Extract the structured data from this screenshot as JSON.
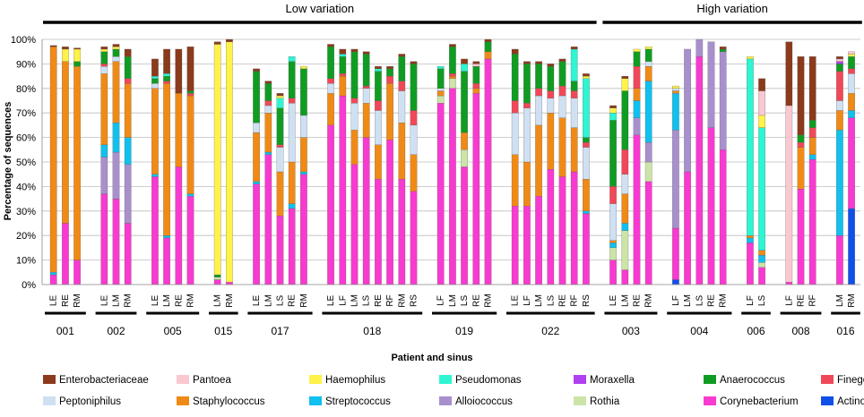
{
  "chart_data": {
    "type": "bar",
    "stacked": true,
    "title": "",
    "xlabel": "Patient and sinus",
    "ylabel": "Percentage of sequences",
    "ylim": [
      0,
      100
    ],
    "yticks": [
      0,
      10,
      20,
      30,
      40,
      50,
      60,
      70,
      80,
      90,
      100
    ],
    "ytick_labels": [
      "0%",
      "10%",
      "20%",
      "30%",
      "40%",
      "50%",
      "60%",
      "70%",
      "80%",
      "90%",
      "100%"
    ],
    "grid": true,
    "legend_position": "bottom",
    "variation_groups": [
      {
        "label": "Low variation",
        "patients": [
          "001",
          "002",
          "005",
          "015",
          "017",
          "018",
          "019",
          "022"
        ]
      },
      {
        "label": "High variation",
        "patients": [
          "003",
          "004",
          "006",
          "008",
          "016"
        ]
      }
    ],
    "taxa": [
      {
        "name": "Enterobacteriaceae",
        "color": "#8b3a1c"
      },
      {
        "name": "Pantoea",
        "color": "#f9c8d0"
      },
      {
        "name": "Haemophilus",
        "color": "#fff24a"
      },
      {
        "name": "Pseudomonas",
        "color": "#2ef5d2"
      },
      {
        "name": "Moraxella",
        "color": "#b040f0"
      },
      {
        "name": "Anaerococcus",
        "color": "#109c22"
      },
      {
        "name": "Finegoldia",
        "color": "#f04858"
      },
      {
        "name": "Peptoniphilus",
        "color": "#cfe0f2"
      },
      {
        "name": "Staphylococcus",
        "color": "#f08a16"
      },
      {
        "name": "Streptococcus",
        "color": "#10c0ee"
      },
      {
        "name": "Alloiococcus",
        "color": "#a890cc"
      },
      {
        "name": "Rothia",
        "color": "#cce4a8"
      },
      {
        "name": "Corynebacterium",
        "color": "#f83ad0"
      },
      {
        "name": "Actinomyces",
        "color": "#1050e8"
      }
    ],
    "stack_order": [
      "Actinomyces",
      "Corynebacterium",
      "Rothia",
      "Alloiococcus",
      "Streptococcus",
      "Staphylococcus",
      "Peptoniphilus",
      "Finegoldia",
      "Anaerococcus",
      "Moraxella",
      "Pseudomonas",
      "Haemophilus",
      "Pantoea",
      "Enterobacteriaceae"
    ],
    "patients": [
      {
        "id": "001",
        "samples": [
          {
            "sinus": "LE",
            "values": {
              "Corynebacterium": 4,
              "Streptococcus": 1,
              "Staphylococcus": 92,
              "Enterobacteriaceae": 0.5
            }
          },
          {
            "sinus": "RE",
            "values": {
              "Corynebacterium": 25,
              "Staphylococcus": 66,
              "Haemophilus": 5,
              "Enterobacteriaceae": 1
            }
          },
          {
            "sinus": "RM",
            "values": {
              "Corynebacterium": 10,
              "Staphylococcus": 79,
              "Anaerococcus": 2,
              "Haemophilus": 5,
              "Enterobacteriaceae": 0.5
            }
          }
        ]
      },
      {
        "id": "002",
        "samples": [
          {
            "sinus": "LE",
            "values": {
              "Corynebacterium": 37,
              "Alloiococcus": 15,
              "Streptococcus": 5,
              "Staphylococcus": 29,
              "Peptoniphilus": 3,
              "Finegoldia": 1,
              "Anaerococcus": 5,
              "Haemophilus": 1,
              "Enterobacteriaceae": 1
            }
          },
          {
            "sinus": "LM",
            "values": {
              "Corynebacterium": 35,
              "Alloiococcus": 19,
              "Streptococcus": 12,
              "Staphylococcus": 25,
              "Peptoniphilus": 2,
              "Anaerococcus": 3,
              "Haemophilus": 1,
              "Enterobacteriaceae": 1
            }
          },
          {
            "sinus": "RM",
            "values": {
              "Corynebacterium": 25,
              "Alloiococcus": 24,
              "Streptococcus": 11,
              "Staphylococcus": 22,
              "Finegoldia": 2,
              "Anaerococcus": 9,
              "Enterobacteriaceae": 3
            }
          }
        ]
      },
      {
        "id": "005",
        "samples": [
          {
            "sinus": "LE",
            "values": {
              "Corynebacterium": 44,
              "Streptococcus": 1,
              "Staphylococcus": 35,
              "Peptoniphilus": 2,
              "Anaerococcus": 2,
              "Pseudomonas": 1,
              "Enterobacteriaceae": 7
            }
          },
          {
            "sinus": "LM",
            "values": {
              "Corynebacterium": 19,
              "Streptococcus": 1,
              "Staphylococcus": 62,
              "Finegoldia": 1,
              "Anaerococcus": 2,
              "Pseudomonas": 1,
              "Enterobacteriaceae": 10
            }
          },
          {
            "sinus": "RE",
            "values": {
              "Corynebacterium": 48,
              "Staphylococcus": 30,
              "Enterobacteriaceae": 18
            }
          },
          {
            "sinus": "RM",
            "values": {
              "Corynebacterium": 36,
              "Streptococcus": 1,
              "Staphylococcus": 40,
              "Finegoldia": 1,
              "Anaerococcus": 1,
              "Enterobacteriaceae": 18
            }
          }
        ]
      },
      {
        "id": "015",
        "samples": [
          {
            "sinus": "LM",
            "values": {
              "Corynebacterium": 2,
              "Rothia": 1,
              "Anaerococcus": 1,
              "Haemophilus": 94,
              "Enterobacteriaceae": 1
            }
          },
          {
            "sinus": "RM",
            "values": {
              "Corynebacterium": 1,
              "Haemophilus": 98,
              "Enterobacteriaceae": 1
            }
          }
        ]
      },
      {
        "id": "017",
        "samples": [
          {
            "sinus": "LE",
            "values": {
              "Corynebacterium": 41,
              "Streptococcus": 1,
              "Staphylococcus": 20,
              "Peptoniphilus": 4,
              "Anaerococcus": 21,
              "Enterobacteriaceae": 1
            }
          },
          {
            "sinus": "LM",
            "values": {
              "Corynebacterium": 53,
              "Streptococcus": 1,
              "Staphylococcus": 16,
              "Peptoniphilus": 3,
              "Finegoldia": 2,
              "Anaerococcus": 7,
              "Enterobacteriaceae": 1
            }
          },
          {
            "sinus": "LS",
            "values": {
              "Corynebacterium": 28,
              "Staphylococcus": 18,
              "Peptoniphilus": 10,
              "Finegoldia": 1,
              "Anaerococcus": 15,
              "Pseudomonas": 4,
              "Haemophilus": 1,
              "Enterobacteriaceae": 1
            }
          },
          {
            "sinus": "RE",
            "values": {
              "Corynebacterium": 31,
              "Streptococcus": 2,
              "Staphylococcus": 17,
              "Peptoniphilus": 24,
              "Finegoldia": 2,
              "Anaerococcus": 15,
              "Pseudomonas": 2
            }
          },
          {
            "sinus": "RM",
            "values": {
              "Corynebacterium": 45,
              "Streptococcus": 1,
              "Staphylococcus": 14,
              "Peptoniphilus": 9,
              "Anaerococcus": 19,
              "Haemophilus": 1
            }
          }
        ]
      },
      {
        "id": "018",
        "samples": [
          {
            "sinus": "LE",
            "values": {
              "Corynebacterium": 65,
              "Staphylococcus": 13,
              "Peptoniphilus": 4,
              "Finegoldia": 2,
              "Anaerococcus": 13,
              "Enterobacteriaceae": 1
            }
          },
          {
            "sinus": "LF",
            "values": {
              "Corynebacterium": 77,
              "Staphylococcus": 8,
              "Finegoldia": 1,
              "Anaerococcus": 7,
              "Pseudomonas": 1,
              "Enterobacteriaceae": 2
            }
          },
          {
            "sinus": "LM",
            "values": {
              "Corynebacterium": 49,
              "Staphylococcus": 14,
              "Peptoniphilus": 11,
              "Finegoldia": 2,
              "Anaerococcus": 19,
              "Enterobacteriaceae": 1
            }
          },
          {
            "sinus": "LS",
            "values": {
              "Corynebacterium": 60,
              "Staphylococcus": 14,
              "Peptoniphilus": 6,
              "Finegoldia": 1,
              "Anaerococcus": 13,
              "Enterobacteriaceae": 1
            }
          },
          {
            "sinus": "RE",
            "values": {
              "Corynebacterium": 43,
              "Staphylococcus": 14,
              "Peptoniphilus": 14,
              "Finegoldia": 4,
              "Anaerococcus": 12,
              "Pseudomonas": 1,
              "Enterobacteriaceae": 1
            }
          },
          {
            "sinus": "RF",
            "values": {
              "Corynebacterium": 59,
              "Staphylococcus": 23,
              "Finegoldia": 3,
              "Anaerococcus": 3,
              "Enterobacteriaceae": 1
            }
          },
          {
            "sinus": "RM",
            "values": {
              "Corynebacterium": 43,
              "Staphylococcus": 23,
              "Peptoniphilus": 13,
              "Finegoldia": 4,
              "Anaerococcus": 10,
              "Enterobacteriaceae": 1
            }
          },
          {
            "sinus": "RS",
            "values": {
              "Corynebacterium": 38,
              "Staphylococcus": 15,
              "Peptoniphilus": 12,
              "Finegoldia": 6,
              "Anaerococcus": 19,
              "Enterobacteriaceae": 1
            }
          }
        ]
      },
      {
        "id": "019",
        "samples": [
          {
            "sinus": "LF",
            "values": {
              "Corynebacterium": 74,
              "Rothia": 3,
              "Peptoniphilus": 1,
              "Staphylococcus": 2,
              "Anaerococcus": 8,
              "Pseudomonas": 1
            }
          },
          {
            "sinus": "LM",
            "values": {
              "Corynebacterium": 80,
              "Rothia": 4,
              "Staphylococcus": 1,
              "Finegoldia": 1,
              "Anaerococcus": 11,
              "Enterobacteriaceae": 1
            }
          },
          {
            "sinus": "LS",
            "values": {
              "Corynebacterium": 48,
              "Rothia": 7,
              "Staphylococcus": 7,
              "Anaerococcus": 25,
              "Pseudomonas": 3,
              "Enterobacteriaceae": 2
            }
          },
          {
            "sinus": "RE",
            "values": {
              "Corynebacterium": 78,
              "Staphylococcus": 2,
              "Finegoldia": 2,
              "Anaerococcus": 7,
              "Pantoea": 1,
              "Enterobacteriaceae": 1
            }
          },
          {
            "sinus": "RM",
            "values": {
              "Corynebacterium": 92,
              "Staphylococcus": 3,
              "Anaerococcus": 4,
              "Enterobacteriaceae": 1
            }
          }
        ]
      },
      {
        "id": "022",
        "samples": [
          {
            "sinus": "LE",
            "values": {
              "Corynebacterium": 32,
              "Staphylococcus": 21,
              "Peptoniphilus": 17,
              "Finegoldia": 5,
              "Anaerococcus": 19,
              "Enterobacteriaceae": 2
            }
          },
          {
            "sinus": "LF",
            "values": {
              "Corynebacterium": 32,
              "Staphylococcus": 18,
              "Peptoniphilus": 22,
              "Finegoldia": 2,
              "Anaerococcus": 16,
              "Enterobacteriaceae": 1
            }
          },
          {
            "sinus": "LM",
            "values": {
              "Corynebacterium": 36,
              "Staphylococcus": 29,
              "Peptoniphilus": 12,
              "Finegoldia": 3,
              "Anaerococcus": 10,
              "Enterobacteriaceae": 1
            }
          },
          {
            "sinus": "LS",
            "values": {
              "Corynebacterium": 47,
              "Staphylococcus": 23,
              "Peptoniphilus": 6,
              "Finegoldia": 3,
              "Anaerococcus": 10,
              "Enterobacteriaceae": 1
            }
          },
          {
            "sinus": "RE",
            "values": {
              "Corynebacterium": 44,
              "Staphylococcus": 24,
              "Peptoniphilus": 9,
              "Finegoldia": 4,
              "Anaerococcus": 10,
              "Enterobacteriaceae": 1
            }
          },
          {
            "sinus": "RF",
            "values": {
              "Corynebacterium": 46,
              "Staphylococcus": 18,
              "Peptoniphilus": 12,
              "Finegoldia": 3,
              "Anaerococcus": 4,
              "Pseudomonas": 13,
              "Enterobacteriaceae": 1
            }
          },
          {
            "sinus": "RS",
            "values": {
              "Corynebacterium": 29,
              "Streptococcus": 1,
              "Staphylococcus": 13,
              "Peptoniphilus": 13,
              "Finegoldia": 2,
              "Anaerococcus": 2,
              "Pseudomonas": 24,
              "Haemophilus": 1,
              "Enterobacteriaceae": 1
            }
          }
        ]
      },
      {
        "id": "003",
        "samples": [
          {
            "sinus": "LE",
            "values": {
              "Corynebacterium": 10,
              "Rothia": 5,
              "Streptococcus": 2,
              "Staphylococcus": 1,
              "Peptoniphilus": 15,
              "Finegoldia": 7,
              "Anaerococcus": 27,
              "Pseudomonas": 3,
              "Haemophilus": 2,
              "Enterobacteriaceae": 1
            }
          },
          {
            "sinus": "LM",
            "values": {
              "Corynebacterium": 6,
              "Rothia": 16,
              "Streptococcus": 3,
              "Staphylococcus": 12,
              "Peptoniphilus": 8,
              "Finegoldia": 10,
              "Anaerococcus": 24,
              "Haemophilus": 5,
              "Enterobacteriaceae": 1
            }
          },
          {
            "sinus": "RE",
            "values": {
              "Corynebacterium": 61,
              "Alloiococcus": 7,
              "Staphylococcus": 5,
              "Streptococcus": 7,
              "Finegoldia": 9,
              "Anaerococcus": 6,
              "Haemophilus": 1
            }
          },
          {
            "sinus": "RM",
            "values": {
              "Corynebacterium": 42,
              "Rothia": 8,
              "Alloiococcus": 8,
              "Streptococcus": 25,
              "Staphylococcus": 6,
              "Peptoniphilus": 2,
              "Anaerococcus": 5,
              "Haemophilus": 1
            }
          }
        ]
      },
      {
        "id": "004",
        "samples": [
          {
            "sinus": "LF",
            "values": {
              "Actinomyces": 2,
              "Corynebacterium": 21,
              "Alloiococcus": 40,
              "Streptococcus": 15,
              "Staphylococcus": 1,
              "Peptoniphilus": 1,
              "Haemophilus": 1
            }
          },
          {
            "sinus": "LM",
            "values": {
              "Corynebacterium": 46,
              "Alloiococcus": 50
            }
          },
          {
            "sinus": "LS",
            "values": {
              "Corynebacterium": 93,
              "Alloiococcus": 7
            }
          },
          {
            "sinus": "RE",
            "values": {
              "Corynebacterium": 64,
              "Alloiococcus": 35
            }
          },
          {
            "sinus": "RM",
            "values": {
              "Corynebacterium": 55,
              "Alloiococcus": 40,
              "Anaerococcus": 1,
              "Enterobacteriaceae": 1
            }
          }
        ]
      },
      {
        "id": "006",
        "samples": [
          {
            "sinus": "LF",
            "values": {
              "Corynebacterium": 17,
              "Streptococcus": 2,
              "Staphylococcus": 1,
              "Pseudomonas": 72,
              "Haemophilus": 1
            }
          },
          {
            "sinus": "LS",
            "values": {
              "Corynebacterium": 7,
              "Streptococcus": 3,
              "Rothia": 2,
              "Staphylococcus": 2,
              "Pseudomonas": 50,
              "Haemophilus": 5,
              "Pantoea": 10,
              "Enterobacteriaceae": 5
            }
          }
        ]
      },
      {
        "id": "008",
        "samples": [
          {
            "sinus": "LF",
            "values": {
              "Corynebacterium": 1,
              "Pantoea": 72,
              "Enterobacteriaceae": 26
            }
          },
          {
            "sinus": "RE",
            "values": {
              "Corynebacterium": 39,
              "Staphylococcus": 17,
              "Finegoldia": 2,
              "Anaerococcus": 3,
              "Enterobacteriaceae": 32
            }
          },
          {
            "sinus": "RF",
            "values": {
              "Corynebacterium": 51,
              "Streptococcus": 2,
              "Staphylococcus": 7,
              "Finegoldia": 4,
              "Anaerococcus": 3,
              "Enterobacteriaceae": 26
            }
          }
        ]
      },
      {
        "id": "016",
        "samples": [
          {
            "sinus": "LM",
            "values": {
              "Corynebacterium": 20,
              "Streptococcus": 43,
              "Staphylococcus": 8,
              "Peptoniphilus": 4,
              "Finegoldia": 12,
              "Anaerococcus": 3,
              "Moraxella": 1,
              "Pantoea": 1,
              "Enterobacteriaceae": 1
            }
          },
          {
            "sinus": "RM",
            "values": {
              "Actinomyces": 31,
              "Corynebacterium": 37,
              "Streptococcus": 3,
              "Staphylococcus": 7,
              "Peptoniphilus": 8,
              "Finegoldia": 2,
              "Anaerococcus": 5,
              "Haemophilus": 1,
              "Pantoea": 1
            }
          }
        ]
      }
    ]
  }
}
